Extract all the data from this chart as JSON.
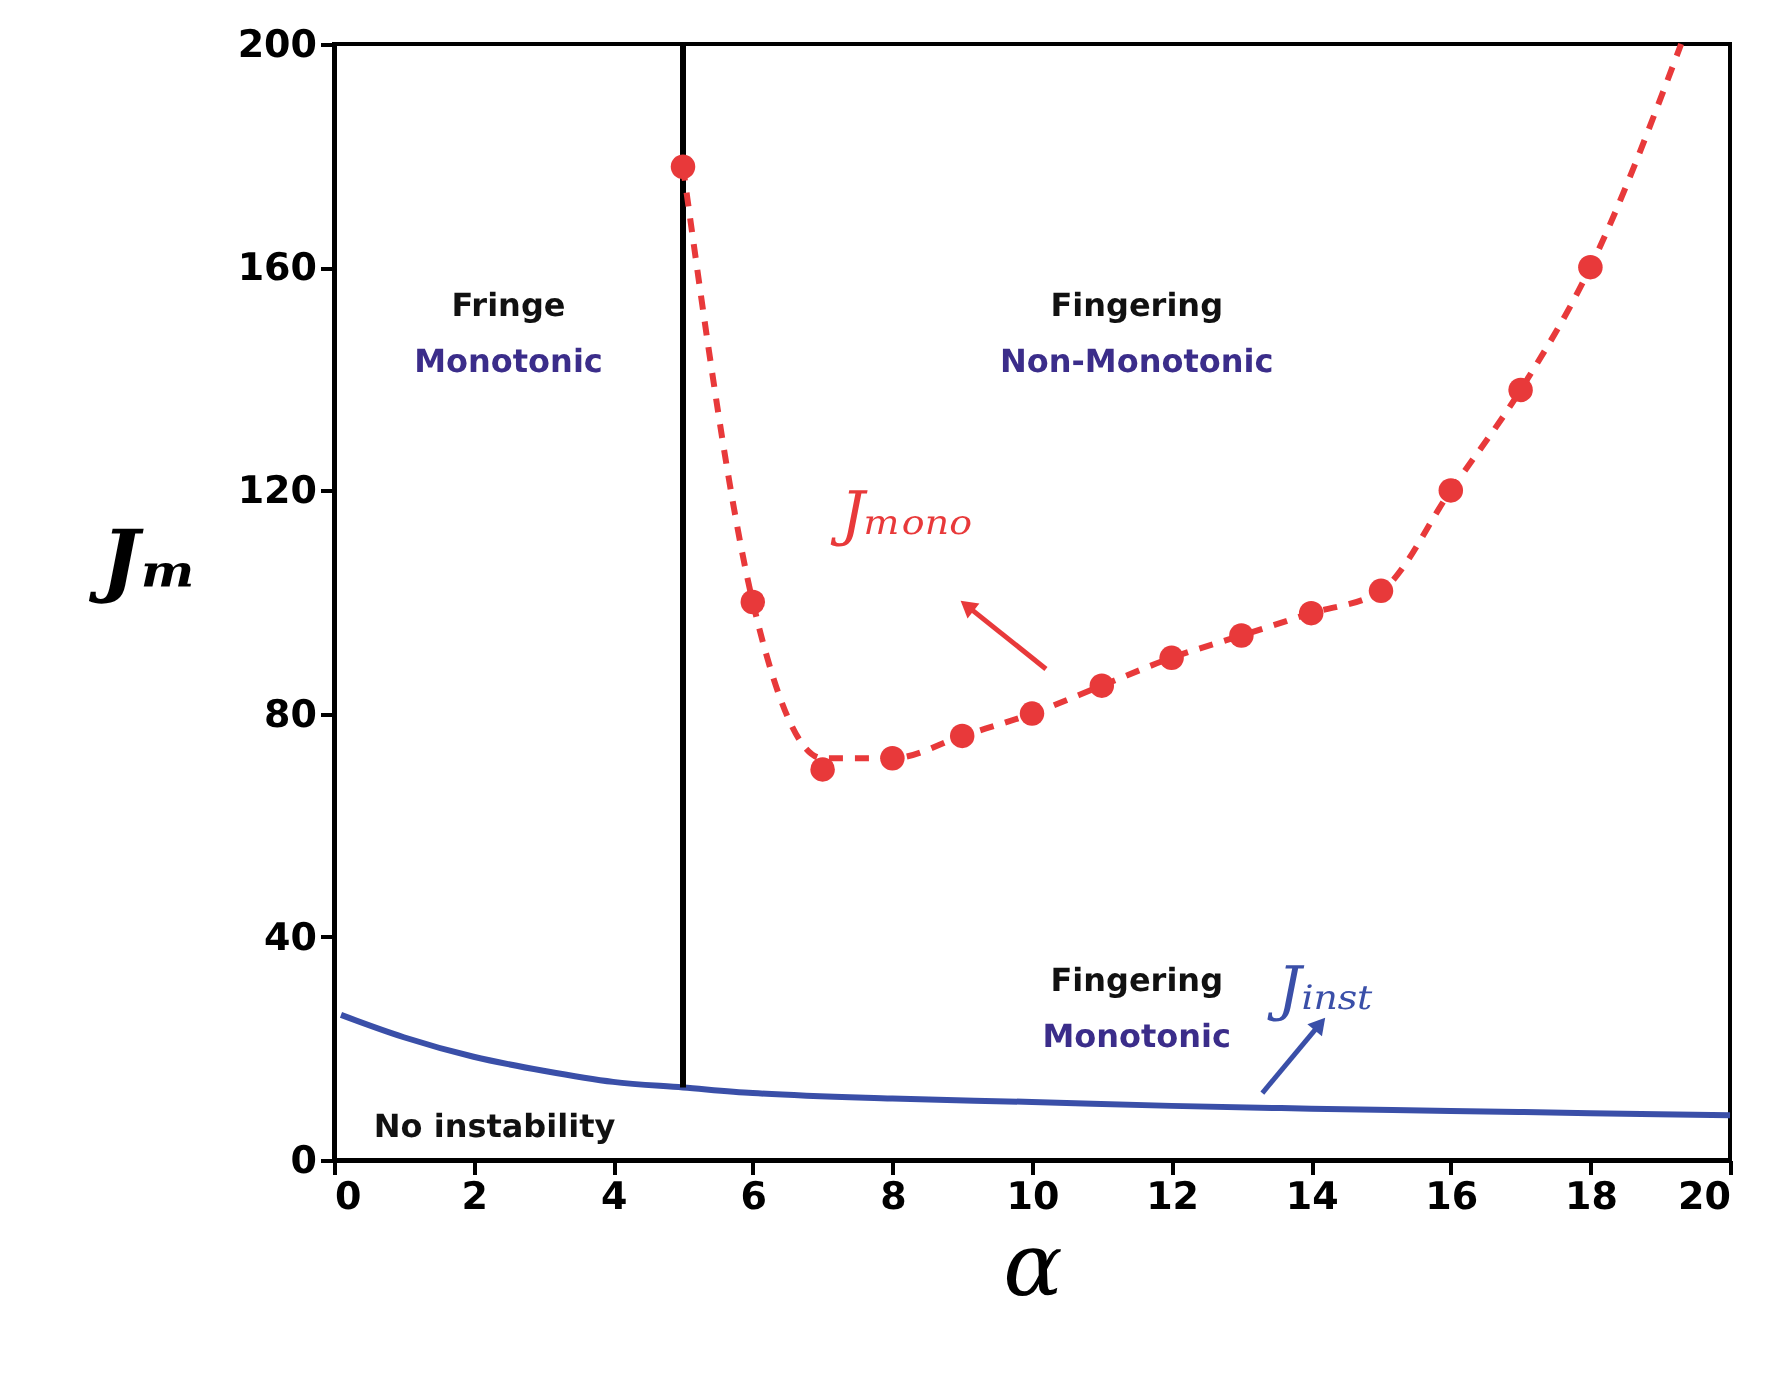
{
  "chart_data": {
    "type": "line",
    "xlabel": "α",
    "ylabel": "Jₘ",
    "xlim": [
      0,
      20
    ],
    "xticks": [
      0,
      2,
      4,
      6,
      8,
      10,
      12,
      14,
      16,
      18,
      20
    ],
    "ylim": [
      0,
      200
    ],
    "yticks": [
      0,
      40,
      80,
      120,
      160,
      200
    ],
    "grid": false,
    "series": [
      {
        "name": "Jᵢₙₛₜ",
        "color": "#3a4fa8",
        "line_style": "solid",
        "x": [
          0.1,
          1,
          2,
          3,
          4,
          5,
          6,
          8,
          10,
          12,
          14,
          16,
          18,
          20
        ],
        "values": [
          26,
          22,
          18.5,
          16,
          14,
          13,
          12,
          11,
          10.4,
          9.7,
          9.2,
          8.8,
          8.4,
          8
        ]
      },
      {
        "color": "#000000",
        "line_style": "solid",
        "x": [
          5,
          5
        ],
        "values": [
          13,
          200
        ]
      },
      {
        "color": "#e8393a",
        "line_style": "dashed",
        "x": [
          5,
          6,
          7,
          8,
          9,
          10,
          11,
          12,
          13,
          14,
          15,
          16,
          17,
          18,
          19.3
        ],
        "values": [
          178,
          100,
          72,
          72,
          76,
          80,
          85,
          90,
          94,
          98,
          102,
          120,
          138,
          160,
          200
        ]
      },
      {
        "name": "Jₘₒₙₒ",
        "color": "#e8393a",
        "type": "scatter",
        "marker": "circle",
        "x": [
          5,
          6,
          7,
          8,
          9,
          10,
          11,
          12,
          13,
          14,
          15,
          16,
          17,
          18
        ],
        "values": [
          178,
          100,
          70,
          72,
          76,
          80,
          85,
          90,
          94,
          98,
          102,
          120,
          138,
          160
        ]
      }
    ],
    "annotations": [
      "Fringe",
      "Monotonic",
      "Fingering",
      "Non-Monotonic",
      "Fingering",
      "Monotonic",
      "No instability"
    ]
  }
}
